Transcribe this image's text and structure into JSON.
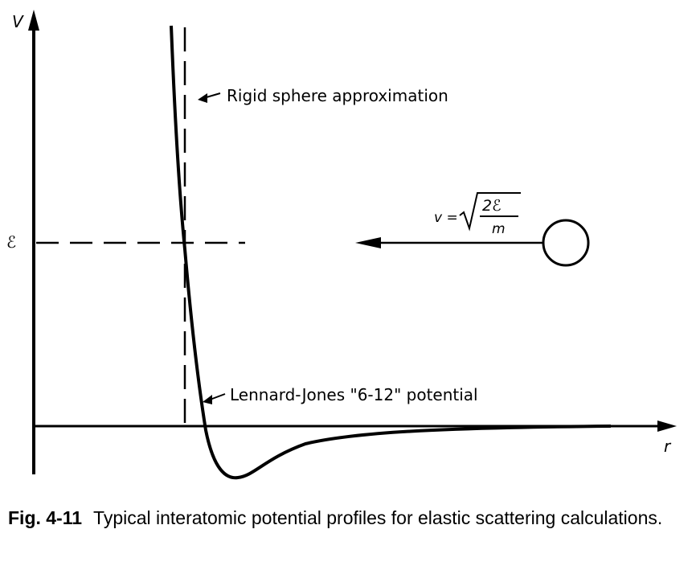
{
  "axes": {
    "y_label": "V",
    "x_label": "r",
    "energy_label": "ℰ"
  },
  "annotations": {
    "rigid_sphere": "Rigid sphere approximation",
    "lennard_jones": "Lennard-Jones \"6-12\" potential"
  },
  "velocity_formula": {
    "lhs": "v =",
    "numerator": "2ℰ",
    "denominator": "m"
  },
  "caption": {
    "figure_number": "Fig. 4-11",
    "text": "Typical interatomic potential profiles for elastic scattering calculations."
  }
}
